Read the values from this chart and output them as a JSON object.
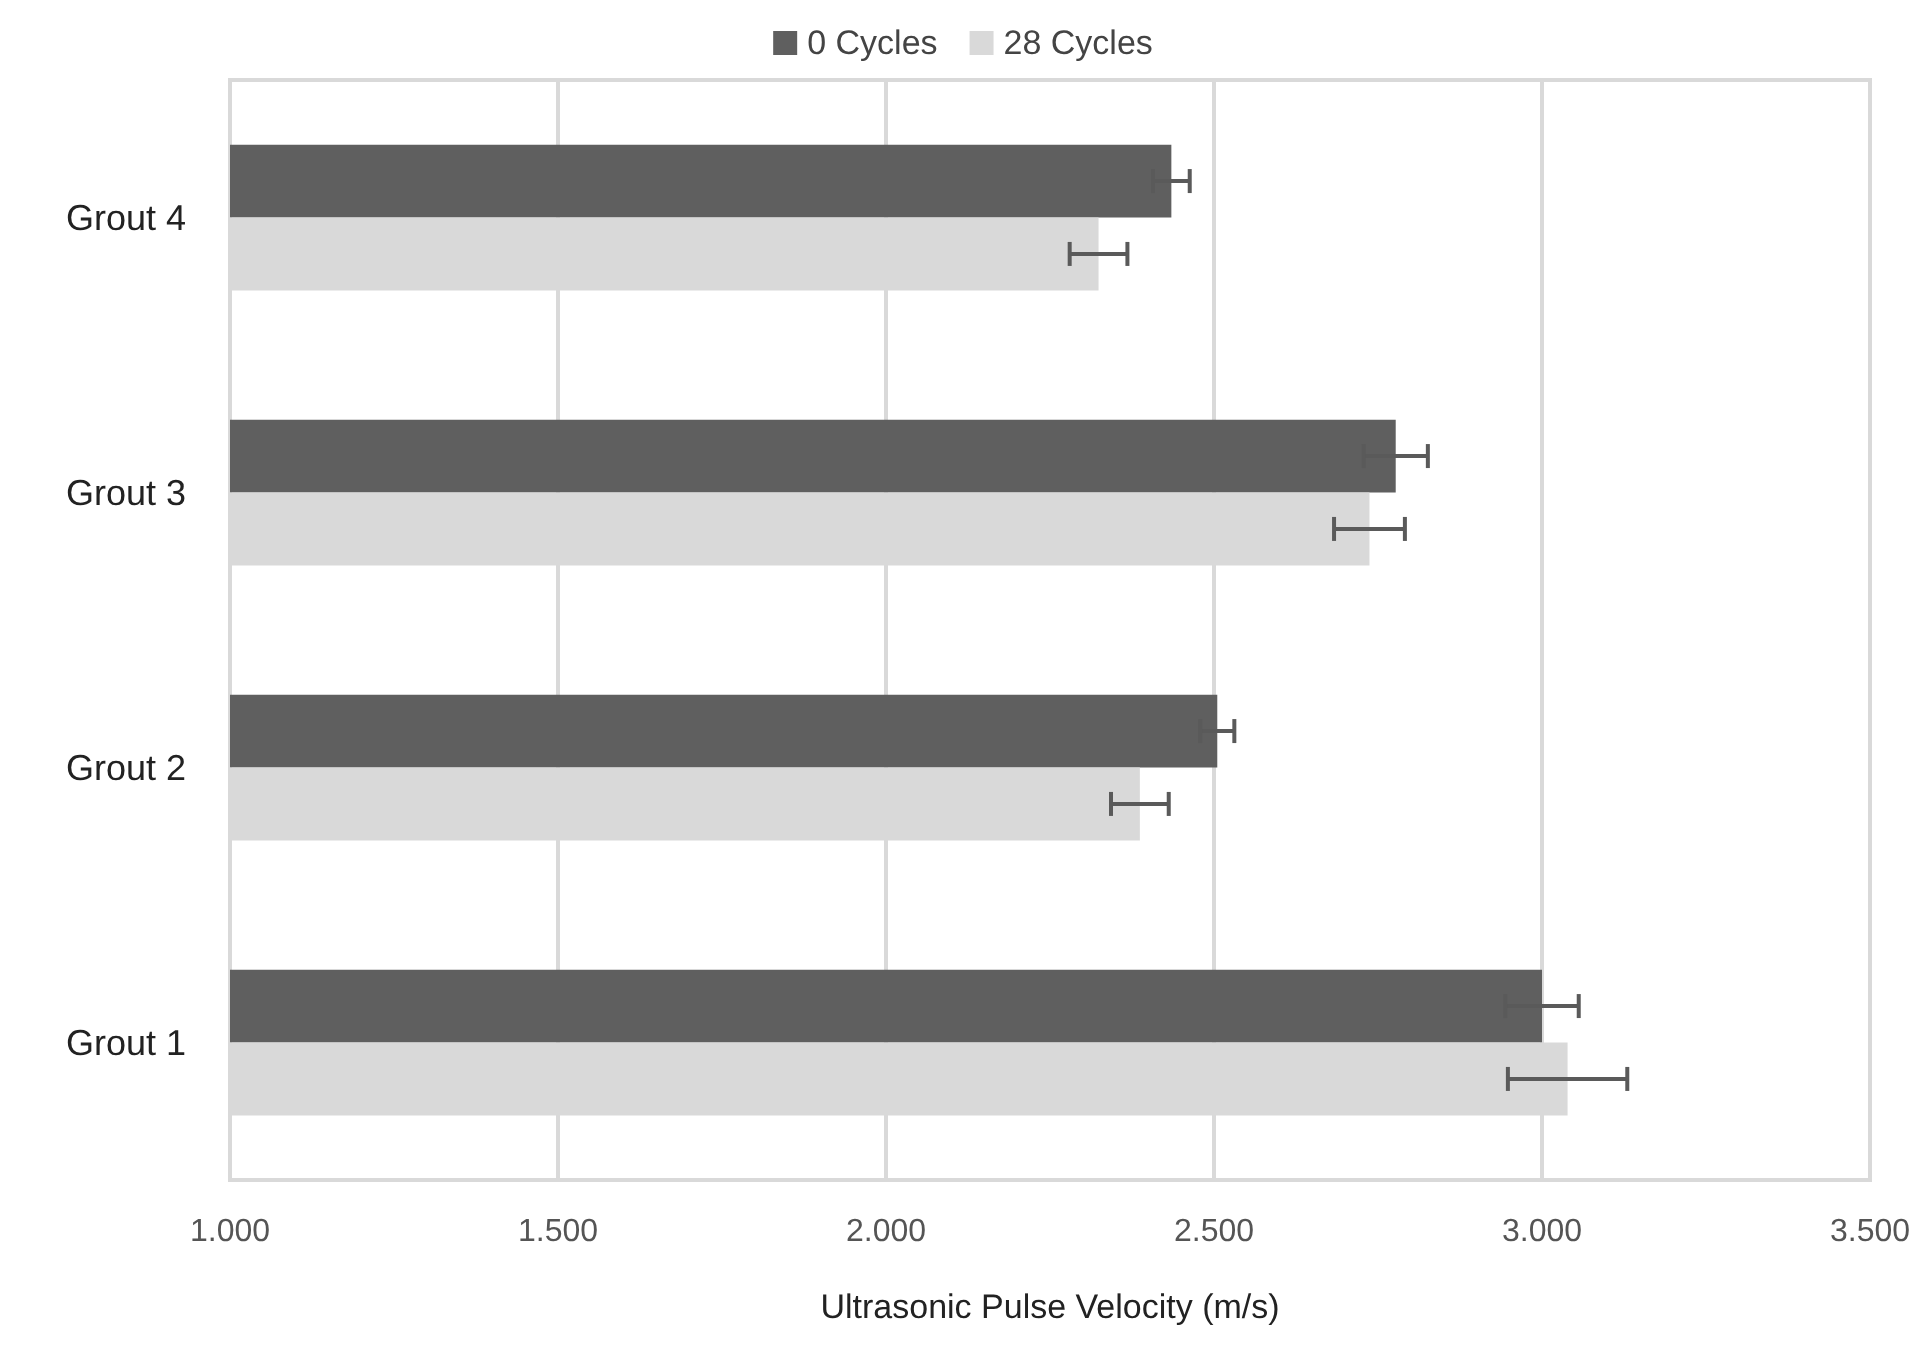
{
  "chart_data": {
    "type": "bar",
    "orientation": "horizontal",
    "xlabel": "Ultrasonic Pulse Velocity (m/s)",
    "categories": [
      "Grout 4",
      "Grout 3",
      "Grout 2",
      "Grout 1"
    ],
    "series": [
      {
        "name": "0 Cycles",
        "color": "#5f5f5f",
        "values": [
          2435,
          2777,
          2505,
          3000
        ],
        "errors": [
          28,
          49,
          26,
          56
        ]
      },
      {
        "name": "28 Cycles",
        "color": "#d9d9d9",
        "values": [
          2324,
          2737,
          2387,
          3039
        ],
        "errors": [
          44,
          54,
          44,
          91
        ]
      }
    ],
    "xlim": [
      1000,
      3500
    ],
    "xticks": [
      {
        "value": 1000,
        "label": "1.000"
      },
      {
        "value": 1500,
        "label": "1.500"
      },
      {
        "value": 2000,
        "label": "2.000"
      },
      {
        "value": 2500,
        "label": "2.500"
      },
      {
        "value": 3000,
        "label": "3.000"
      },
      {
        "value": 3500,
        "label": "3.500"
      }
    ],
    "grid": "x",
    "legend": "top"
  }
}
